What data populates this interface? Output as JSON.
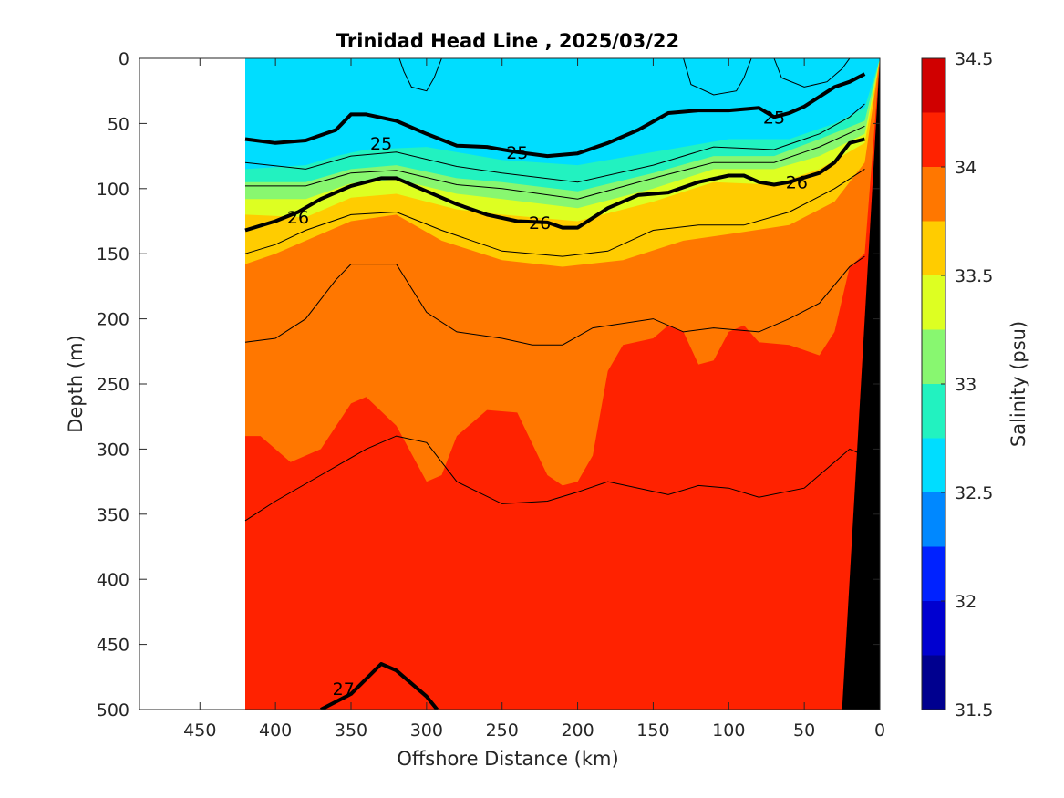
{
  "chart_data": {
    "type": "contour",
    "title": "Trinidad Head Line , 2025/03/22",
    "xlabel": "Offshore Distance (km)",
    "ylabel": "Depth (m)",
    "xlim": [
      490,
      0
    ],
    "ylim": [
      0,
      500
    ],
    "x_reversed": true,
    "y_reversed": true,
    "xticks": [
      "450",
      "400",
      "350",
      "300",
      "250",
      "200",
      "150",
      "100",
      "50",
      "0"
    ],
    "yticks": [
      "0",
      "50",
      "100",
      "150",
      "200",
      "250",
      "300",
      "350",
      "400",
      "450",
      "500"
    ],
    "data_extent_km": [
      420,
      0
    ],
    "colorbar": {
      "label": "Salinity (psu)",
      "range": [
        31.5,
        34.5
      ],
      "ticks": [
        "31.5",
        "32",
        "32.5",
        "33",
        "33.5",
        "34",
        "34.5"
      ],
      "levels": [
        {
          "min": 31.5,
          "max": 31.75,
          "color": "#00008f"
        },
        {
          "min": 31.75,
          "max": 32.0,
          "color": "#0000d0"
        },
        {
          "min": 32.0,
          "max": 32.25,
          "color": "#0022ff"
        },
        {
          "min": 32.25,
          "max": 32.5,
          "color": "#0088ff"
        },
        {
          "min": 32.5,
          "max": 32.75,
          "color": "#00ddff"
        },
        {
          "min": 32.75,
          "max": 33.0,
          "color": "#22f2c0"
        },
        {
          "min": 33.0,
          "max": 33.25,
          "color": "#88f770"
        },
        {
          "min": 33.25,
          "max": 33.5,
          "color": "#ddff22"
        },
        {
          "min": 33.5,
          "max": 33.75,
          "color": "#ffcc00"
        },
        {
          "min": 33.75,
          "max": 34.0,
          "color": "#ff7700"
        },
        {
          "min": 34.0,
          "max": 34.25,
          "color": "#ff2200"
        },
        {
          "min": 34.25,
          "max": 34.5,
          "color": "#d00000"
        }
      ]
    },
    "bands": [
      {
        "name": "s32.5-32.75",
        "color": "#00ddff",
        "upper": [
          [
            420,
            0
          ],
          [
            0,
            0
          ]
        ],
        "lower": [
          [
            420,
            85
          ],
          [
            380,
            82
          ],
          [
            360,
            75
          ],
          [
            340,
            70
          ],
          [
            300,
            68
          ],
          [
            250,
            78
          ],
          [
            200,
            82
          ],
          [
            150,
            72
          ],
          [
            100,
            62
          ],
          [
            60,
            62
          ],
          [
            30,
            50
          ],
          [
            10,
            38
          ]
        ]
      },
      {
        "name": "s32.75-33.0",
        "color": "#22f2c0",
        "lower": [
          [
            420,
            95
          ],
          [
            380,
            95
          ],
          [
            350,
            85
          ],
          [
            320,
            82
          ],
          [
            280,
            92
          ],
          [
            250,
            95
          ],
          [
            200,
            102
          ],
          [
            150,
            88
          ],
          [
            110,
            75
          ],
          [
            70,
            75
          ],
          [
            40,
            62
          ],
          [
            10,
            48
          ]
        ]
      },
      {
        "name": "s33.0-33.25",
        "color": "#88f770",
        "lower": [
          [
            420,
            108
          ],
          [
            380,
            108
          ],
          [
            350,
            96
          ],
          [
            320,
            93
          ],
          [
            280,
            104
          ],
          [
            250,
            108
          ],
          [
            200,
            115
          ],
          [
            150,
            100
          ],
          [
            110,
            85
          ],
          [
            70,
            85
          ],
          [
            40,
            75
          ],
          [
            10,
            58
          ]
        ]
      },
      {
        "name": "s33.25-33.5",
        "color": "#ddff22",
        "lower": [
          [
            420,
            120
          ],
          [
            380,
            122
          ],
          [
            350,
            107
          ],
          [
            320,
            104
          ],
          [
            280,
            116
          ],
          [
            250,
            120
          ],
          [
            200,
            125
          ],
          [
            150,
            110
          ],
          [
            110,
            95
          ],
          [
            70,
            97
          ],
          [
            40,
            85
          ],
          [
            10,
            65
          ]
        ]
      },
      {
        "name": "s33.5-33.75",
        "color": "#ffcc00",
        "lower": [
          [
            420,
            158
          ],
          [
            400,
            150
          ],
          [
            380,
            140
          ],
          [
            350,
            125
          ],
          [
            320,
            120
          ],
          [
            290,
            140
          ],
          [
            250,
            155
          ],
          [
            210,
            160
          ],
          [
            170,
            155
          ],
          [
            130,
            140
          ],
          [
            100,
            135
          ],
          [
            60,
            128
          ],
          [
            30,
            110
          ],
          [
            10,
            80
          ]
        ]
      },
      {
        "name": "s33.75-34.0",
        "color": "#ff7700",
        "lower": [
          [
            420,
            290
          ],
          [
            410,
            290
          ],
          [
            390,
            310
          ],
          [
            370,
            300
          ],
          [
            350,
            265
          ],
          [
            340,
            260
          ],
          [
            320,
            282
          ],
          [
            300,
            325
          ],
          [
            290,
            320
          ],
          [
            280,
            290
          ],
          [
            260,
            270
          ],
          [
            240,
            272
          ],
          [
            220,
            320
          ],
          [
            210,
            328
          ],
          [
            200,
            325
          ],
          [
            190,
            305
          ],
          [
            180,
            240
          ],
          [
            170,
            220
          ],
          [
            150,
            215
          ],
          [
            140,
            205
          ],
          [
            130,
            210
          ],
          [
            120,
            235
          ],
          [
            110,
            232
          ],
          [
            100,
            210
          ],
          [
            90,
            205
          ],
          [
            80,
            218
          ],
          [
            60,
            220
          ],
          [
            40,
            228
          ],
          [
            30,
            210
          ],
          [
            20,
            160
          ],
          [
            10,
            150
          ]
        ]
      }
    ],
    "deep_color": "#ff2200",
    "thin_contours": [
      {
        "points": [
          [
            420,
            218
          ],
          [
            400,
            215
          ],
          [
            380,
            200
          ],
          [
            360,
            170
          ],
          [
            350,
            158
          ],
          [
            320,
            158
          ],
          [
            300,
            195
          ],
          [
            280,
            210
          ],
          [
            250,
            215
          ],
          [
            230,
            220
          ],
          [
            210,
            220
          ],
          [
            190,
            207
          ],
          [
            150,
            200
          ],
          [
            130,
            210
          ],
          [
            110,
            207
          ],
          [
            80,
            210
          ],
          [
            60,
            200
          ],
          [
            40,
            188
          ],
          [
            20,
            160
          ],
          [
            10,
            152
          ]
        ]
      },
      {
        "points": [
          [
            420,
            355
          ],
          [
            400,
            340
          ],
          [
            370,
            320
          ],
          [
            340,
            300
          ],
          [
            320,
            290
          ],
          [
            300,
            295
          ],
          [
            280,
            325
          ],
          [
            250,
            342
          ],
          [
            220,
            340
          ],
          [
            200,
            333
          ],
          [
            180,
            325
          ],
          [
            160,
            330
          ],
          [
            140,
            335
          ],
          [
            120,
            328
          ],
          [
            100,
            330
          ],
          [
            80,
            337
          ],
          [
            50,
            330
          ],
          [
            30,
            310
          ],
          [
            20,
            300
          ],
          [
            10,
            305
          ]
        ]
      },
      {
        "points": [
          [
            420,
            80
          ],
          [
            380,
            85
          ],
          [
            350,
            75
          ],
          [
            320,
            72
          ],
          [
            280,
            83
          ],
          [
            250,
            88
          ],
          [
            200,
            95
          ],
          [
            150,
            82
          ],
          [
            110,
            68
          ],
          [
            70,
            70
          ],
          [
            40,
            58
          ],
          [
            20,
            45
          ],
          [
            10,
            35
          ]
        ]
      },
      {
        "points": [
          [
            420,
            98
          ],
          [
            380,
            98
          ],
          [
            350,
            88
          ],
          [
            320,
            86
          ],
          [
            280,
            97
          ],
          [
            250,
            100
          ],
          [
            200,
            108
          ],
          [
            150,
            92
          ],
          [
            110,
            80
          ],
          [
            70,
            80
          ],
          [
            40,
            68
          ],
          [
            10,
            52
          ]
        ]
      },
      {
        "points": [
          [
            420,
            150
          ],
          [
            400,
            143
          ],
          [
            380,
            132
          ],
          [
            350,
            120
          ],
          [
            320,
            118
          ],
          [
            290,
            132
          ],
          [
            250,
            148
          ],
          [
            210,
            152
          ],
          [
            180,
            148
          ],
          [
            150,
            132
          ],
          [
            120,
            128
          ],
          [
            90,
            128
          ],
          [
            60,
            118
          ],
          [
            30,
            100
          ],
          [
            10,
            85
          ]
        ]
      },
      {
        "points": [
          [
            290,
            0
          ],
          [
            295,
            15
          ],
          [
            300,
            25
          ],
          [
            310,
            22
          ],
          [
            315,
            10
          ],
          [
            318,
            0
          ]
        ]
      },
      {
        "points": [
          [
            130,
            0
          ],
          [
            125,
            20
          ],
          [
            110,
            28
          ],
          [
            95,
            25
          ],
          [
            90,
            15
          ],
          [
            85,
            0
          ]
        ]
      },
      {
        "points": [
          [
            70,
            0
          ],
          [
            65,
            15
          ],
          [
            50,
            22
          ],
          [
            35,
            18
          ],
          [
            25,
            8
          ],
          [
            20,
            0
          ]
        ]
      }
    ],
    "bold_contours": [
      {
        "label": "25",
        "label_at": [
          [
            330,
            65
          ],
          [
            240,
            72
          ],
          [
            70,
            45
          ]
        ],
        "points": [
          [
            420,
            62
          ],
          [
            400,
            65
          ],
          [
            380,
            63
          ],
          [
            360,
            55
          ],
          [
            350,
            43
          ],
          [
            340,
            43
          ],
          [
            320,
            48
          ],
          [
            300,
            58
          ],
          [
            280,
            67
          ],
          [
            260,
            68
          ],
          [
            240,
            72
          ],
          [
            220,
            75
          ],
          [
            200,
            73
          ],
          [
            180,
            65
          ],
          [
            160,
            55
          ],
          [
            140,
            42
          ],
          [
            120,
            40
          ],
          [
            100,
            40
          ],
          [
            80,
            38
          ],
          [
            70,
            45
          ],
          [
            60,
            42
          ],
          [
            50,
            37
          ],
          [
            30,
            22
          ],
          [
            20,
            18
          ],
          [
            10,
            12
          ]
        ]
      },
      {
        "label": "26",
        "label_at": [
          [
            385,
            122
          ],
          [
            225,
            126
          ],
          [
            55,
            95
          ]
        ],
        "points": [
          [
            420,
            132
          ],
          [
            400,
            125
          ],
          [
            385,
            118
          ],
          [
            370,
            108
          ],
          [
            350,
            98
          ],
          [
            330,
            92
          ],
          [
            320,
            92
          ],
          [
            300,
            102
          ],
          [
            280,
            112
          ],
          [
            260,
            120
          ],
          [
            240,
            125
          ],
          [
            220,
            126
          ],
          [
            210,
            130
          ],
          [
            200,
            130
          ],
          [
            180,
            115
          ],
          [
            160,
            105
          ],
          [
            140,
            103
          ],
          [
            120,
            95
          ],
          [
            100,
            90
          ],
          [
            90,
            90
          ],
          [
            80,
            95
          ],
          [
            70,
            97
          ],
          [
            60,
            95
          ],
          [
            40,
            88
          ],
          [
            30,
            80
          ],
          [
            20,
            65
          ],
          [
            10,
            62
          ]
        ]
      },
      {
        "label": "27",
        "label_at": [
          [
            355,
            484
          ]
        ],
        "points": [
          [
            370,
            500
          ],
          [
            350,
            488
          ],
          [
            330,
            465
          ],
          [
            320,
            470
          ],
          [
            300,
            490
          ],
          [
            293,
            500
          ]
        ]
      }
    ],
    "bottom_mask": {
      "color": "#000000",
      "points": [
        [
          0,
          0
        ],
        [
          25,
          500
        ],
        [
          0,
          500
        ]
      ]
    }
  }
}
